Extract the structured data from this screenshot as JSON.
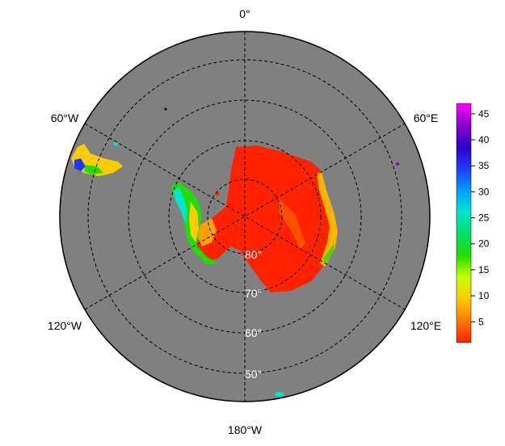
{
  "map": {
    "projection": "south-polar-stereographic",
    "background_color": "#808080",
    "longitude_labels": [
      {
        "lon": "0",
        "text": "0°"
      },
      {
        "lon": "60E",
        "text": "60°E"
      },
      {
        "lon": "120E",
        "text": "120°E"
      },
      {
        "lon": "180",
        "text": "180°W"
      },
      {
        "lon": "120W",
        "text": "120°W"
      },
      {
        "lon": "60W",
        "text": "60°W"
      }
    ],
    "latitude_labels": [
      "80°",
      "70°",
      "60°",
      "50°"
    ],
    "graticule": {
      "latitudes": [
        80,
        70,
        60,
        50
      ],
      "longitude_step": 60,
      "style": "dashed"
    }
  },
  "colorbar": {
    "ticks": [
      "45",
      "40",
      "35",
      "30",
      "25",
      "20",
      "15",
      "10",
      "5"
    ],
    "colors": [
      "#ff2200",
      "#ff7700",
      "#ffcc00",
      "#c8ff00",
      "#22dd00",
      "#00e066",
      "#00e5cc",
      "#00a0ff",
      "#1d3bff",
      "#2a00c8",
      "#8b00d0",
      "#ff00ff"
    ],
    "range": [
      1,
      47
    ]
  }
}
